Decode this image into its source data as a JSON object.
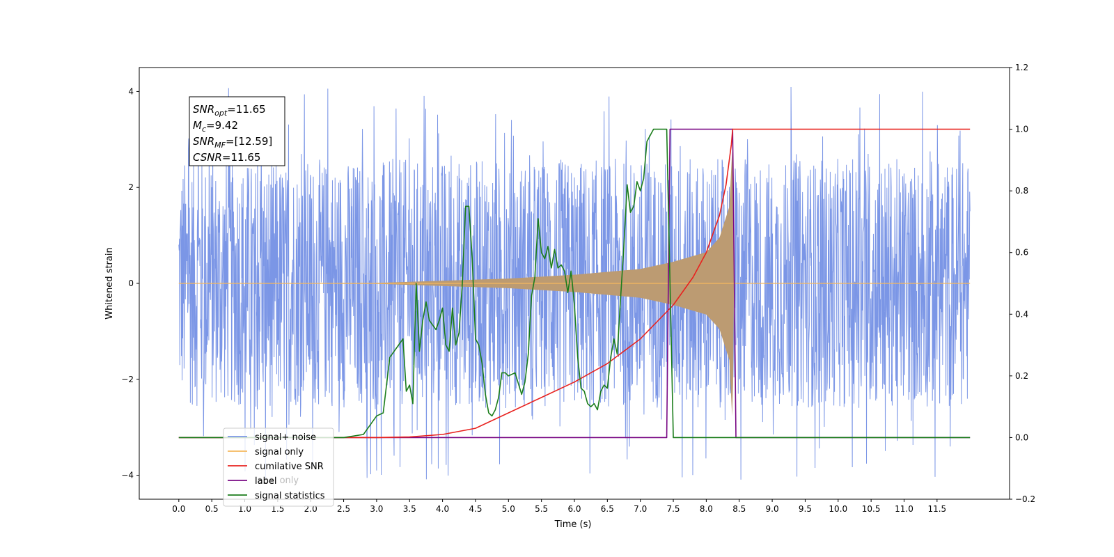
{
  "chart_data": {
    "type": "line",
    "title": "",
    "xlabel": "Time (s)",
    "ylabel": "Whitened strain",
    "xlim": [
      -0.6,
      12.6
    ],
    "ylim_left": [
      -4.5,
      4.5
    ],
    "ylim_right": [
      -0.2,
      1.2
    ],
    "x_ticks": [
      "0.0",
      "0.5",
      "1.0",
      "1.5",
      "2.0",
      "2.5",
      "3.0",
      "3.5",
      "4.0",
      "4.5",
      "5.0",
      "5.5",
      "6.0",
      "6.5",
      "7.0",
      "7.5",
      "8.0",
      "8.5",
      "9.0",
      "9.5",
      "10.0",
      "10.5",
      "11.0",
      "11.5"
    ],
    "y_left_ticks": [
      "−4",
      "−2",
      "0",
      "2",
      "4"
    ],
    "y_right_ticks": [
      "−0.2",
      "0.0",
      "0.2",
      "0.4",
      "0.6",
      "0.8",
      "1.0",
      "1.2"
    ],
    "grid": false,
    "legend_position": "lower-left",
    "textbox": [
      "SNR_opt=11.65",
      "M_c=9.42",
      "SNR_MF=[12.59]",
      "CSNR=11.65"
    ],
    "series": [
      {
        "name": "signal+ noise",
        "color": "#7b96e6",
        "axis": "left",
        "x_range": [
          0.0,
          12.0
        ],
        "noise_band": [
          -2.6,
          2.6
        ],
        "noise_peaks": [
          -4.1,
          4.1
        ]
      },
      {
        "name": "signal only",
        "color": "#f5b85e",
        "axis": "left",
        "envelope": {
          "x": [
            0.0,
            3.0,
            5.0,
            6.0,
            7.0,
            7.5,
            8.0,
            8.2,
            8.35,
            8.4,
            8.42
          ],
          "amp": [
            0.0,
            0.01,
            0.1,
            0.18,
            0.3,
            0.45,
            0.65,
            0.95,
            1.6,
            3.0,
            0.0
          ]
        }
      },
      {
        "name": "cumilative SNR",
        "color": "#e8221f",
        "axis": "right",
        "x": [
          0.0,
          3.0,
          3.5,
          4.0,
          4.5,
          5.0,
          5.5,
          6.0,
          6.5,
          7.0,
          7.5,
          7.8,
          8.0,
          8.2,
          8.3,
          8.38,
          8.4,
          12.0
        ],
        "y": [
          0.0,
          0.0,
          0.002,
          0.01,
          0.03,
          0.08,
          0.13,
          0.18,
          0.24,
          0.32,
          0.43,
          0.52,
          0.6,
          0.72,
          0.82,
          0.95,
          1.0,
          1.0
        ]
      },
      {
        "name": "label",
        "color": "#7a0a85",
        "axis": "right",
        "x": [
          0.0,
          7.4,
          7.45,
          8.4,
          8.45,
          12.0
        ],
        "y": [
          0.0,
          0.0,
          1.0,
          1.0,
          0.0,
          0.0
        ]
      },
      {
        "name": "signal statistics",
        "color": "#1b7d1b",
        "axis": "right",
        "x": [
          0.0,
          2.5,
          2.8,
          2.9,
          3.0,
          3.1,
          3.2,
          3.3,
          3.4,
          3.45,
          3.5,
          3.55,
          3.6,
          3.65,
          3.7,
          3.75,
          3.8,
          3.9,
          3.95,
          4.0,
          4.05,
          4.1,
          4.15,
          4.2,
          4.25,
          4.3,
          4.35,
          4.4,
          4.45,
          4.5,
          4.55,
          4.6,
          4.65,
          4.7,
          4.75,
          4.8,
          4.85,
          4.9,
          4.95,
          5.0,
          5.1,
          5.2,
          5.25,
          5.3,
          5.35,
          5.4,
          5.45,
          5.5,
          5.55,
          5.6,
          5.65,
          5.7,
          5.75,
          5.8,
          5.85,
          5.9,
          5.95,
          6.0,
          6.05,
          6.1,
          6.15,
          6.2,
          6.25,
          6.3,
          6.35,
          6.4,
          6.45,
          6.5,
          6.55,
          6.6,
          6.65,
          6.7,
          6.75,
          6.8,
          6.85,
          6.9,
          6.95,
          7.0,
          7.05,
          7.1,
          7.15,
          7.2,
          7.25,
          7.3,
          7.35,
          7.4,
          7.45,
          7.5,
          7.55,
          7.6,
          7.65,
          7.7,
          7.75,
          7.8,
          7.85,
          7.9,
          7.95,
          8.0,
          8.1,
          8.2,
          8.3,
          8.35,
          8.4,
          8.45,
          8.5,
          12.0
        ],
        "y": [
          0.0,
          0.0,
          0.01,
          0.04,
          0.07,
          0.08,
          0.26,
          0.29,
          0.32,
          0.15,
          0.17,
          0.11,
          0.5,
          0.28,
          0.38,
          0.44,
          0.38,
          0.35,
          0.38,
          0.42,
          0.3,
          0.28,
          0.42,
          0.3,
          0.34,
          0.5,
          0.75,
          0.75,
          0.58,
          0.32,
          0.3,
          0.24,
          0.14,
          0.08,
          0.07,
          0.09,
          0.13,
          0.21,
          0.21,
          0.2,
          0.21,
          0.14,
          0.18,
          0.27,
          0.46,
          0.52,
          0.71,
          0.6,
          0.58,
          0.62,
          0.55,
          0.61,
          0.55,
          0.56,
          0.54,
          0.47,
          0.54,
          0.43,
          0.26,
          0.16,
          0.15,
          0.11,
          0.1,
          0.11,
          0.09,
          0.15,
          0.17,
          0.16,
          0.26,
          0.32,
          0.27,
          0.45,
          0.62,
          0.82,
          0.73,
          0.75,
          0.83,
          0.8,
          0.84,
          0.96,
          0.98,
          1.0,
          1.0,
          1.0,
          1.0,
          1.0,
          0.5,
          0.0,
          0.0,
          0.0,
          0.0,
          0.0,
          0.0,
          0.0,
          0.0,
          0.0,
          0.0,
          0.0,
          0.0,
          0.0,
          0.0,
          0.0,
          0.0,
          0.0,
          0.0,
          0.0
        ]
      }
    ]
  },
  "textbox_display": [
    {
      "base": "SNR",
      "sub": "opt",
      "rest": "=11.65"
    },
    {
      "base": "M",
      "sub": "c",
      "rest": "=9.42"
    },
    {
      "base": "SNR",
      "sub": "MF",
      "rest": "=[12.59]"
    },
    {
      "base": "CSNR",
      "sub": "",
      "rest": "=11.65"
    }
  ],
  "legend_labels": [
    "signal+ noise",
    "signal only",
    "cumilative SNR",
    "label",
    "signal statistics"
  ],
  "legend_ghost_text": "label only"
}
